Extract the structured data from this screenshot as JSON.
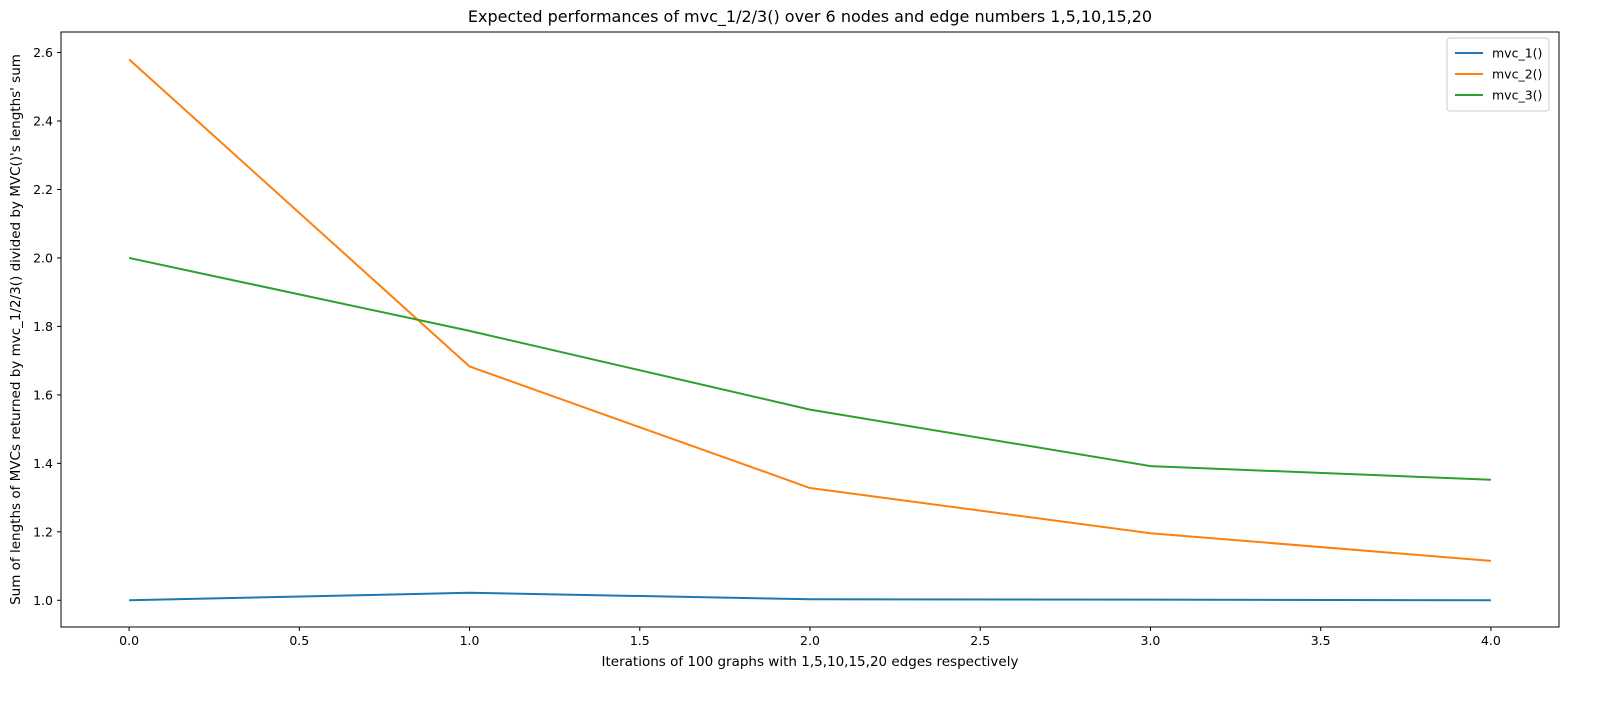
{
  "chart_data": {
    "type": "line",
    "title": "Expected performances of mvc_1/2/3() over 6 nodes and edge numbers 1,5,10,15,20",
    "xlabel": "Iterations of 100 graphs with 1,5,10,15,20 edges respectively",
    "ylabel": "Sum of lengths of MVCs returned by mvc_1/2/3() divided by MVC()'s lengths' sum",
    "x": [
      0,
      1,
      2,
      3,
      4
    ],
    "xlim": [
      -0.2,
      4.2
    ],
    "ylim": [
      0.922,
      2.66
    ],
    "xticks": [
      "0.0",
      "0.5",
      "1.0",
      "1.5",
      "2.0",
      "2.5",
      "3.0",
      "3.5",
      "4.0"
    ],
    "yticks": [
      "1.0",
      "1.2",
      "1.4",
      "1.6",
      "1.8",
      "2.0",
      "2.2",
      "2.4",
      "2.6"
    ],
    "grid": false,
    "legend_position": "top-right",
    "series": [
      {
        "name": "mvc_1()",
        "color": "#1f77b4",
        "values": [
          1.0,
          1.022,
          1.003,
          1.002,
          1.0
        ]
      },
      {
        "name": "mvc_2()",
        "color": "#ff7f0e",
        "values": [
          2.58,
          1.683,
          1.328,
          1.196,
          1.115
        ]
      },
      {
        "name": "mvc_3()",
        "color": "#2ca02c",
        "values": [
          2.0,
          1.787,
          1.557,
          1.392,
          1.352
        ]
      }
    ]
  }
}
